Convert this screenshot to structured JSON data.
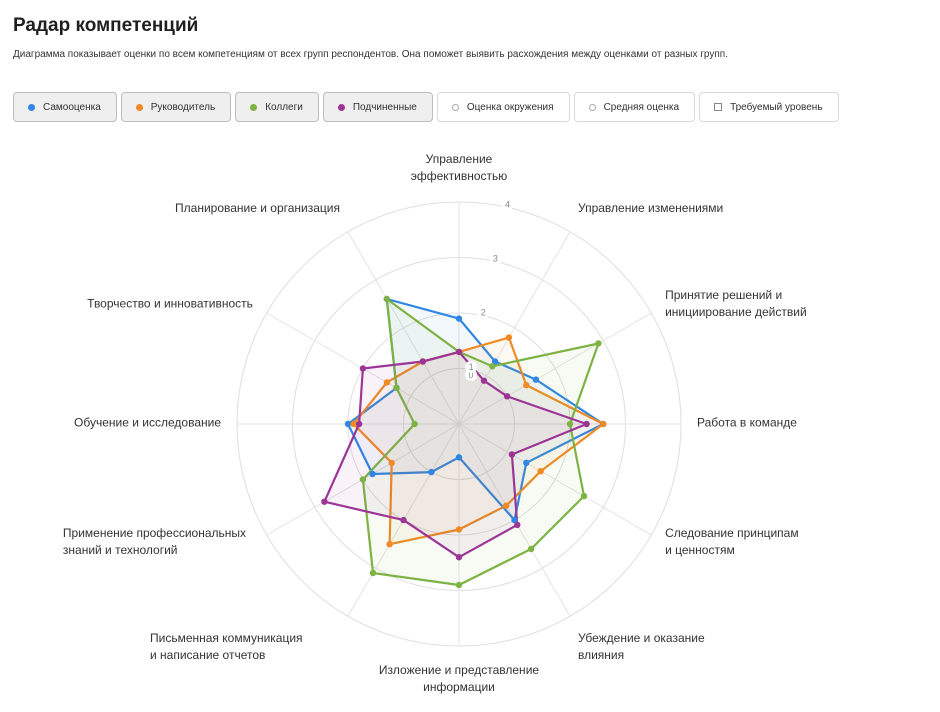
{
  "header": {
    "title": "Радар компетенций",
    "subtitle": "Диаграмма показывает оценки по всем компетенциям от всех групп респондентов. Она поможет выявить расхождения между оценками от разных групп."
  },
  "legend": [
    {
      "label": "Самооценка",
      "color": "#2f86e4",
      "marker": "dot",
      "active": true
    },
    {
      "label": "Руководитель",
      "color": "#f08a24",
      "marker": "dot",
      "active": true
    },
    {
      "label": "Коллеги",
      "color": "#7cb342",
      "marker": "dot",
      "active": true
    },
    {
      "label": "Подчиненные",
      "color": "#9c3596",
      "marker": "dot",
      "active": true
    },
    {
      "label": "Оценка окружения",
      "color": "#aaaaaa",
      "marker": "ring",
      "active": false
    },
    {
      "label": "Средняя оценка",
      "color": "#aaaaaa",
      "marker": "ring",
      "active": false
    },
    {
      "label": "Требуемый уровень",
      "color": "#888888",
      "marker": "square",
      "active": false
    }
  ],
  "chart_data": {
    "type": "radar",
    "rlim": [
      0,
      4
    ],
    "ticks": [
      "0",
      "1",
      "2",
      "3",
      "4"
    ],
    "grid": true,
    "categories": [
      [
        "Управление",
        "эффективностью"
      ],
      [
        "Управление изменениями"
      ],
      [
        "Принятие решений и",
        "инициирование действий"
      ],
      [
        "Работа в команде"
      ],
      [
        "Следование принципам",
        "и ценностям"
      ],
      [
        "Убеждение и оказание",
        "влияния"
      ],
      [
        "Изложение и представление",
        "информации"
      ],
      [
        "Письменная коммуникация",
        "и написание отчетов"
      ],
      [
        "Применение профессиональных",
        "знаний и технологий"
      ],
      [
        "Обучение и исследование"
      ],
      [
        "Творчество и инновативность"
      ],
      [
        "Планирование и организация"
      ]
    ],
    "series": [
      {
        "name": "Самооценка",
        "color": "#2f86e4",
        "values": [
          1.9,
          1.3,
          1.6,
          2.6,
          1.4,
          2.0,
          0.6,
          1.0,
          1.8,
          2.0,
          1.3,
          2.6
        ]
      },
      {
        "name": "Руководитель",
        "color": "#f08a24",
        "values": [
          1.3,
          1.8,
          1.4,
          2.6,
          1.7,
          1.7,
          1.9,
          2.5,
          1.4,
          1.9,
          1.5,
          1.3
        ]
      },
      {
        "name": "Коллеги",
        "color": "#7cb342",
        "values": [
          1.3,
          1.2,
          2.9,
          2.0,
          2.6,
          2.6,
          2.9,
          3.1,
          2.0,
          0.8,
          1.3,
          2.6
        ]
      },
      {
        "name": "Подчиненные",
        "color": "#9c3596",
        "values": [
          1.3,
          0.9,
          1.0,
          2.3,
          1.1,
          2.1,
          2.4,
          2.0,
          2.8,
          1.8,
          2.0,
          1.3
        ]
      }
    ]
  }
}
